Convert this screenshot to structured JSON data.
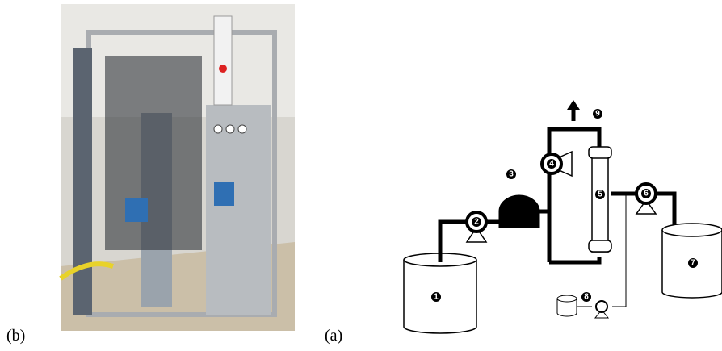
{
  "labels": [
    "(b)",
    "(a)"
  ],
  "nodes": [
    {
      "label": "1"
    },
    {
      "label": "2"
    },
    {
      "label": "3"
    },
    {
      "label": "4"
    },
    {
      "label": "5"
    },
    {
      "label": "6"
    },
    {
      "label": "7"
    },
    {
      "label": "8"
    },
    {
      "label": "9"
    }
  ]
}
